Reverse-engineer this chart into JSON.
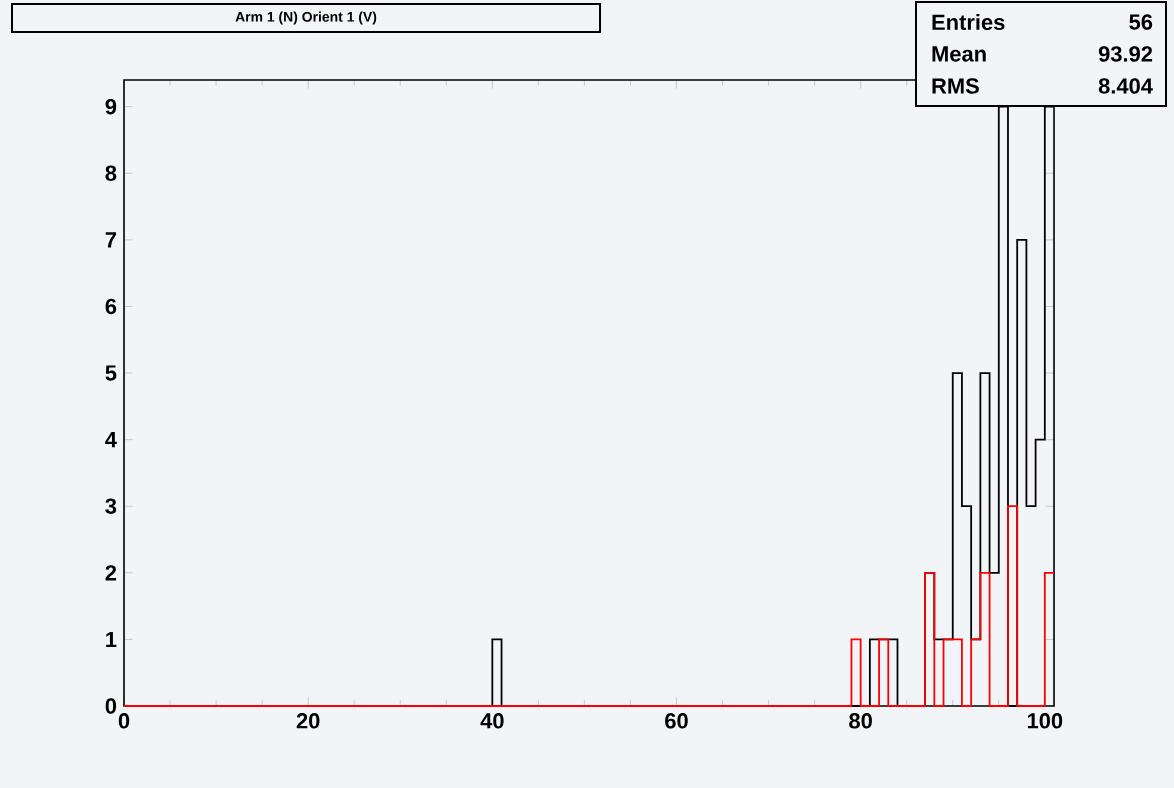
{
  "chart_data": {
    "type": "histogram",
    "title": "Arm 1 (N) Orient 1 (V)",
    "annotations": [
      "Entries",
      "56",
      "Mean",
      "93.92",
      "RMS",
      "8.404"
    ],
    "bins": [
      0,
      1,
      2,
      3,
      4,
      5,
      6,
      7,
      8,
      9,
      10,
      11,
      12,
      13,
      14,
      15,
      16,
      17,
      18,
      19,
      20,
      21,
      22,
      23,
      24,
      25,
      26,
      27,
      28,
      29,
      30,
      31,
      32,
      33,
      34,
      35,
      36,
      37,
      38,
      39,
      40,
      41,
      42,
      43,
      44,
      45,
      46,
      47,
      48,
      49,
      50,
      51,
      52,
      53,
      54,
      55,
      56,
      57,
      58,
      59,
      60,
      61,
      62,
      63,
      64,
      65,
      66,
      67,
      68,
      69,
      70,
      71,
      72,
      73,
      74,
      75,
      76,
      77,
      78,
      79,
      80,
      81,
      82,
      83,
      84,
      85,
      86,
      87,
      88,
      89,
      90,
      91,
      92,
      93,
      94,
      95,
      96,
      97,
      98,
      99,
      100,
      101
    ],
    "series": [
      {
        "color": "#000000",
        "values": [
          0,
          0,
          0,
          0,
          0,
          0,
          0,
          0,
          0,
          0,
          0,
          0,
          0,
          0,
          0,
          0,
          0,
          0,
          0,
          0,
          0,
          0,
          0,
          0,
          0,
          0,
          0,
          0,
          0,
          0,
          0,
          0,
          0,
          0,
          0,
          0,
          0,
          0,
          0,
          0,
          1,
          0,
          0,
          0,
          0,
          0,
          0,
          0,
          0,
          0,
          0,
          0,
          0,
          0,
          0,
          0,
          0,
          0,
          0,
          0,
          0,
          0,
          0,
          0,
          0,
          0,
          0,
          0,
          0,
          0,
          0,
          0,
          0,
          0,
          0,
          0,
          0,
          0,
          0,
          0,
          0,
          1,
          1,
          1,
          0,
          0,
          0,
          2,
          1,
          1,
          5,
          3,
          1,
          5,
          2,
          9,
          0,
          7,
          3,
          4,
          9
        ]
      },
      {
        "color": "#ff0000",
        "values": [
          0,
          0,
          0,
          0,
          0,
          0,
          0,
          0,
          0,
          0,
          0,
          0,
          0,
          0,
          0,
          0,
          0,
          0,
          0,
          0,
          0,
          0,
          0,
          0,
          0,
          0,
          0,
          0,
          0,
          0,
          0,
          0,
          0,
          0,
          0,
          0,
          0,
          0,
          0,
          0,
          0,
          0,
          0,
          0,
          0,
          0,
          0,
          0,
          0,
          0,
          0,
          0,
          0,
          0,
          0,
          0,
          0,
          0,
          0,
          0,
          0,
          0,
          0,
          0,
          0,
          0,
          0,
          0,
          0,
          0,
          0,
          0,
          0,
          0,
          0,
          0,
          0,
          0,
          0,
          1,
          0,
          0,
          1,
          0,
          0,
          0,
          0,
          2,
          0,
          1,
          1,
          0,
          1,
          2,
          0,
          0,
          3,
          0,
          0,
          0,
          2
        ]
      }
    ],
    "xlim": [
      0,
      101
    ],
    "ylim": [
      0,
      9.4
    ],
    "xticks": [
      0,
      20,
      40,
      60,
      80,
      100
    ],
    "yticks": [
      0,
      1,
      2,
      3,
      4,
      5,
      6,
      7,
      8,
      9
    ]
  }
}
